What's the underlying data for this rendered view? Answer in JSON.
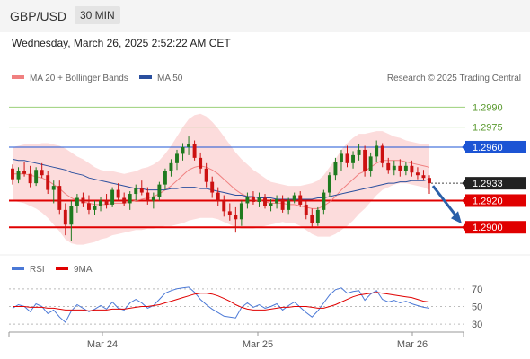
{
  "header": {
    "symbol": "GBP/USD",
    "timeframe": "30 MIN"
  },
  "timestamp": "Wednesday, March 26, 2025 2:52:22 AM CET",
  "credit": "Research © 2025 Trading Central",
  "colors": {
    "bollinger_fill": "#fbd6d6",
    "ma20": "#f08080",
    "ma50": "#2a4f9e",
    "candle_up": "#1f7a1f",
    "candle_down": "#cc1111",
    "target_green": "#9cd07a",
    "pivot_blue": "#1c54d4",
    "support_red": "#e00000",
    "current": "#222222",
    "arrow": "#2a5fa8",
    "rsi": "#4a78d6",
    "rsi_ma": "#e00000"
  },
  "chart_data": [
    {
      "type": "candlestick",
      "legend": [
        {
          "name": "MA 20 + Bollinger Bands",
          "color": "#f08080"
        },
        {
          "name": "MA 50",
          "color": "#2a4f9e"
        }
      ],
      "ylim": [
        1.2882,
        1.3003
      ],
      "x_ticks": [
        "Mar 24",
        "Mar 25",
        "Mar 26"
      ],
      "candles_ohlc": [
        [
          1.2944,
          1.2947,
          1.2932,
          1.2936
        ],
        [
          1.2936,
          1.2945,
          1.2933,
          1.2942
        ],
        [
          1.2942,
          1.2949,
          1.2938,
          1.294
        ],
        [
          1.294,
          1.2946,
          1.293,
          1.2933
        ],
        [
          1.2933,
          1.2945,
          1.2931,
          1.2943
        ],
        [
          1.2943,
          1.2948,
          1.2937,
          1.2939
        ],
        [
          1.2939,
          1.2942,
          1.2925,
          1.2928
        ],
        [
          1.2928,
          1.2935,
          1.2918,
          1.2931
        ],
        [
          1.2931,
          1.2935,
          1.291,
          1.2913
        ],
        [
          1.2913,
          1.2918,
          1.2894,
          1.2902
        ],
        [
          1.2902,
          1.292,
          1.289,
          1.2916
        ],
        [
          1.2916,
          1.2925,
          1.2911,
          1.2922
        ],
        [
          1.2922,
          1.2926,
          1.2915,
          1.2918
        ],
        [
          1.2918,
          1.2924,
          1.291,
          1.2913
        ],
        [
          1.2913,
          1.292,
          1.2909,
          1.2916
        ],
        [
          1.2916,
          1.2923,
          1.2912,
          1.292
        ],
        [
          1.292,
          1.2925,
          1.2914,
          1.2917
        ],
        [
          1.2917,
          1.293,
          1.2915,
          1.2928
        ],
        [
          1.2928,
          1.2933,
          1.292,
          1.2922
        ],
        [
          1.2922,
          1.2926,
          1.2916,
          1.2918
        ],
        [
          1.2918,
          1.2927,
          1.2913,
          1.2925
        ],
        [
          1.2925,
          1.2932,
          1.292,
          1.2929
        ],
        [
          1.2929,
          1.2935,
          1.2924,
          1.2926
        ],
        [
          1.2926,
          1.293,
          1.2917,
          1.292
        ],
        [
          1.292,
          1.2926,
          1.2914,
          1.2923
        ],
        [
          1.2923,
          1.2934,
          1.292,
          1.2932
        ],
        [
          1.2932,
          1.2944,
          1.2928,
          1.2942
        ],
        [
          1.2942,
          1.2951,
          1.2938,
          1.2948
        ],
        [
          1.2948,
          1.2958,
          1.2943,
          1.2955
        ],
        [
          1.2955,
          1.2963,
          1.295,
          1.296
        ],
        [
          1.296,
          1.2968,
          1.2954,
          1.2962
        ],
        [
          1.2962,
          1.2965,
          1.295,
          1.2952
        ],
        [
          1.2952,
          1.2956,
          1.294,
          1.2944
        ],
        [
          1.2944,
          1.2948,
          1.293,
          1.2934
        ],
        [
          1.2934,
          1.2938,
          1.2922,
          1.2926
        ],
        [
          1.2926,
          1.293,
          1.2916,
          1.292
        ],
        [
          1.292,
          1.2924,
          1.2908,
          1.2912
        ],
        [
          1.2912,
          1.2918,
          1.2905,
          1.2909
        ],
        [
          1.2909,
          1.2915,
          1.2896,
          1.2906
        ],
        [
          1.2906,
          1.292,
          1.2901,
          1.2918
        ],
        [
          1.2918,
          1.2926,
          1.2914,
          1.2923
        ],
        [
          1.2923,
          1.2927,
          1.2917,
          1.2919
        ],
        [
          1.2919,
          1.2926,
          1.2915,
          1.2922
        ],
        [
          1.2922,
          1.2925,
          1.2914,
          1.2916
        ],
        [
          1.2916,
          1.2921,
          1.2912,
          1.2918
        ],
        [
          1.2918,
          1.2924,
          1.2914,
          1.2921
        ],
        [
          1.2921,
          1.2924,
          1.2911,
          1.2913
        ],
        [
          1.2913,
          1.2922,
          1.291,
          1.292
        ],
        [
          1.292,
          1.2926,
          1.2918,
          1.2924
        ],
        [
          1.2924,
          1.2927,
          1.2915,
          1.2917
        ],
        [
          1.2917,
          1.292,
          1.2906,
          1.2909
        ],
        [
          1.2909,
          1.2914,
          1.29,
          1.2903
        ],
        [
          1.2903,
          1.2915,
          1.2901,
          1.2913
        ],
        [
          1.2913,
          1.2928,
          1.291,
          1.2926
        ],
        [
          1.2926,
          1.2941,
          1.2923,
          1.2939
        ],
        [
          1.2939,
          1.2952,
          1.2935,
          1.2949
        ],
        [
          1.2949,
          1.2958,
          1.2942,
          1.2955
        ],
        [
          1.2955,
          1.2961,
          1.2945,
          1.2948
        ],
        [
          1.2948,
          1.2957,
          1.2944,
          1.2954
        ],
        [
          1.2954,
          1.2962,
          1.295,
          1.2958
        ],
        [
          1.2958,
          1.2961,
          1.2938,
          1.2942
        ],
        [
          1.2942,
          1.2956,
          1.2938,
          1.2953
        ],
        [
          1.2953,
          1.2965,
          1.2949,
          1.2961
        ],
        [
          1.2961,
          1.2963,
          1.2945,
          1.2948
        ],
        [
          1.2948,
          1.2952,
          1.294,
          1.2943
        ],
        [
          1.2943,
          1.295,
          1.2939,
          1.2946
        ],
        [
          1.2946,
          1.2951,
          1.2938,
          1.2942
        ],
        [
          1.2942,
          1.2949,
          1.2939,
          1.2946
        ],
        [
          1.2946,
          1.295,
          1.2938,
          1.2941
        ],
        [
          1.2941,
          1.2945,
          1.2936,
          1.2939
        ],
        [
          1.2939,
          1.2943,
          1.2935,
          1.2937
        ],
        [
          1.2937,
          1.2939,
          1.2925,
          1.2933
        ]
      ],
      "ma20": [
        1.294,
        1.294,
        1.294,
        1.2939,
        1.2938,
        1.2937,
        1.2935,
        1.2932,
        1.2929,
        1.2925,
        1.2922,
        1.292,
        1.2919,
        1.2918,
        1.2917,
        1.2917,
        1.2917,
        1.2918,
        1.2918,
        1.2918,
        1.2919,
        1.292,
        1.2921,
        1.2922,
        1.2923,
        1.2925,
        1.2928,
        1.2931,
        1.2935,
        1.2939,
        1.2943,
        1.2945,
        1.2946,
        1.2945,
        1.2943,
        1.294,
        1.2936,
        1.2932,
        1.2928,
        1.2925,
        1.2923,
        1.2921,
        1.292,
        1.2919,
        1.2918,
        1.2918,
        1.2918,
        1.2917,
        1.2917,
        1.2916,
        1.2915,
        1.2914,
        1.2914,
        1.2916,
        1.2919,
        1.2923,
        1.2928,
        1.2932,
        1.2936,
        1.294,
        1.2942,
        1.2945,
        1.2948,
        1.295,
        1.295,
        1.295,
        1.295,
        1.2949,
        1.2948,
        1.2947,
        1.2946,
        1.2945
      ],
      "ma50": [
        1.2951,
        1.295,
        1.295,
        1.2949,
        1.2948,
        1.2947,
        1.2946,
        1.2945,
        1.2944,
        1.2943,
        1.2941,
        1.294,
        1.2939,
        1.2937,
        1.2936,
        1.2935,
        1.2934,
        1.2933,
        1.2932,
        1.2931,
        1.293,
        1.2929,
        1.2929,
        1.2928,
        1.2928,
        1.2928,
        1.2928,
        1.2929,
        1.2929,
        1.293,
        1.293,
        1.293,
        1.2929,
        1.2929,
        1.2928,
        1.2927,
        1.2926,
        1.2925,
        1.2924,
        1.2924,
        1.2923,
        1.2923,
        1.2922,
        1.2922,
        1.2922,
        1.2921,
        1.2921,
        1.2921,
        1.2921,
        1.2921,
        1.2921,
        1.2921,
        1.2922,
        1.2922,
        1.2923,
        1.2924,
        1.2925,
        1.2926,
        1.2927,
        1.2928,
        1.2929,
        1.293,
        1.2931,
        1.2932,
        1.2933,
        1.2933,
        1.2934,
        1.2934,
        1.2935,
        1.2935,
        1.2935,
        1.2936
      ],
      "bollinger_width": [
        0.002,
        0.0021,
        0.0022,
        0.0023,
        0.0024,
        0.0026,
        0.0028,
        0.003,
        0.0032,
        0.0034,
        0.0034,
        0.0033,
        0.0032,
        0.003,
        0.0028,
        0.0026,
        0.0025,
        0.0024,
        0.0023,
        0.0022,
        0.0022,
        0.0022,
        0.0023,
        0.0023,
        0.0024,
        0.0025,
        0.0027,
        0.003,
        0.0033,
        0.0036,
        0.0038,
        0.0039,
        0.0039,
        0.0038,
        0.0036,
        0.0034,
        0.0032,
        0.003,
        0.0028,
        0.0026,
        0.0024,
        0.0022,
        0.002,
        0.0018,
        0.0016,
        0.0015,
        0.0014,
        0.0014,
        0.0014,
        0.0015,
        0.0017,
        0.0019,
        0.0021,
        0.0023,
        0.0026,
        0.0028,
        0.003,
        0.0031,
        0.0031,
        0.003,
        0.0028,
        0.0026,
        0.0024,
        0.0022,
        0.002,
        0.0018,
        0.0017,
        0.0016,
        0.0016,
        0.0016,
        0.0016,
        0.0017
      ],
      "levels": [
        {
          "label": "1.2990",
          "value": 1.299,
          "role": "target"
        },
        {
          "label": "1.2975",
          "value": 1.2975,
          "role": "target"
        },
        {
          "label": "1.2960",
          "value": 1.296,
          "role": "pivot"
        },
        {
          "label": "1.2933",
          "value": 1.2933,
          "role": "current"
        },
        {
          "label": "1.2920",
          "value": 1.292,
          "role": "support"
        },
        {
          "label": "1.2900",
          "value": 1.29,
          "role": "support"
        }
      ],
      "arrow": {
        "from": 1.2931,
        "to": 1.2902,
        "direction": "down"
      }
    },
    {
      "type": "line",
      "legend": [
        {
          "name": "RSI",
          "color": "#4a78d6"
        },
        {
          "name": "9MA",
          "color": "#e00000"
        }
      ],
      "ylim": [
        25,
        80
      ],
      "y_ticks": [
        "70",
        "50",
        "30"
      ],
      "series": [
        {
          "name": "RSI",
          "values": [
            48,
            52,
            50,
            44,
            53,
            50,
            42,
            46,
            38,
            32,
            45,
            52,
            48,
            44,
            47,
            51,
            47,
            55,
            48,
            46,
            54,
            58,
            54,
            48,
            51,
            58,
            65,
            68,
            70,
            71,
            72,
            66,
            58,
            52,
            47,
            43,
            39,
            38,
            37,
            49,
            54,
            49,
            52,
            48,
            50,
            53,
            46,
            51,
            55,
            49,
            43,
            38,
            45,
            54,
            63,
            69,
            71,
            65,
            67,
            68,
            57,
            64,
            68,
            58,
            55,
            57,
            54,
            56,
            53,
            51,
            49,
            48
          ]
        },
        {
          "name": "9MA",
          "values": [
            50,
            50,
            50,
            49,
            49,
            49,
            48,
            48,
            47,
            46,
            46,
            46,
            46,
            45,
            46,
            46,
            46,
            47,
            47,
            47,
            48,
            49,
            50,
            50,
            51,
            52,
            54,
            56,
            58,
            60,
            62,
            64,
            65,
            65,
            64,
            62,
            59,
            56,
            52,
            49,
            47,
            46,
            46,
            46,
            47,
            48,
            49,
            49,
            50,
            50,
            50,
            49,
            48,
            48,
            50,
            52,
            55,
            58,
            61,
            63,
            64,
            65,
            66,
            65,
            64,
            63,
            62,
            61,
            60,
            58,
            56,
            55
          ]
        }
      ]
    }
  ]
}
